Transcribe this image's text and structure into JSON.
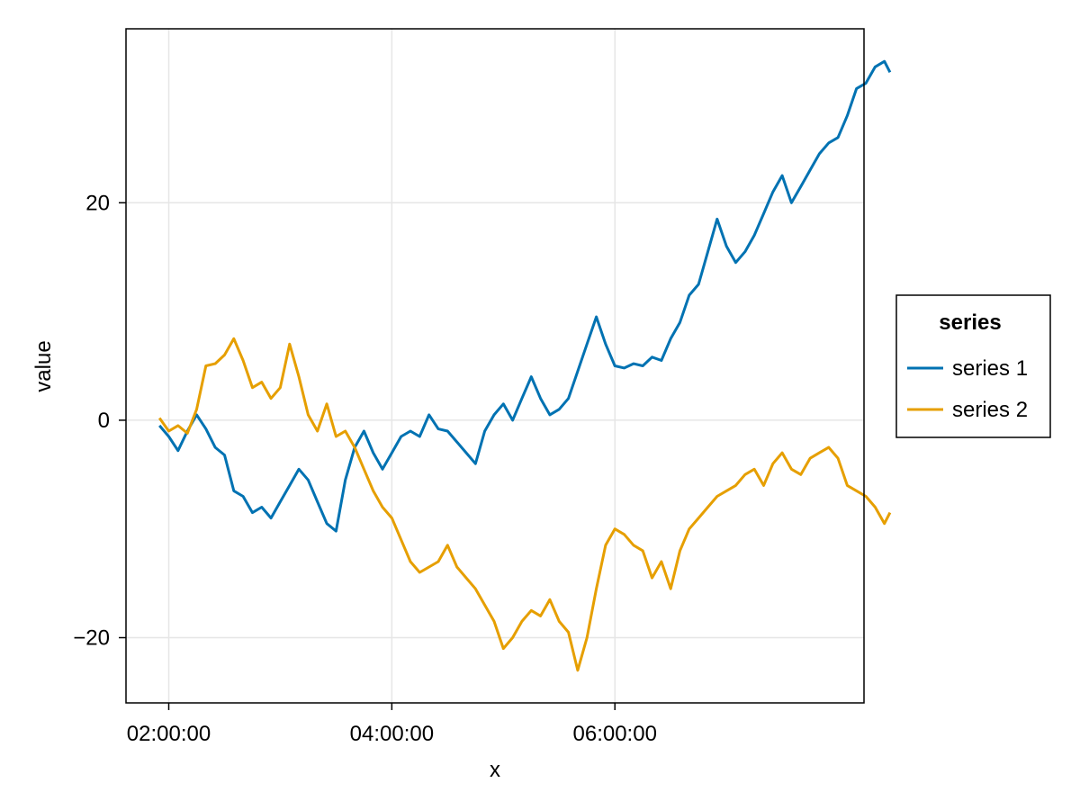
{
  "chart_data": {
    "type": "line",
    "title": "",
    "xlabel": "x",
    "ylabel": "value",
    "x_type": "time",
    "xlim": [
      "01:37:00",
      "08:14:00"
    ],
    "ylim": [
      -26,
      36
    ],
    "x_ticks": [
      "02:00:00",
      "04:00:00",
      "06:00:00"
    ],
    "y_ticks": [
      -20,
      0,
      20
    ],
    "y_tick_labels": [
      "−20",
      "0",
      "20"
    ],
    "grid": true,
    "legend": {
      "title": "series",
      "position": "right"
    },
    "series": [
      {
        "name": "series 1",
        "color": "#0072b2",
        "points": [
          [
            "01:55:00",
            -0.5
          ],
          [
            "02:00:00",
            -1.5
          ],
          [
            "02:05:00",
            -2.8
          ],
          [
            "02:10:00",
            -1.0
          ],
          [
            "02:15:00",
            0.5
          ],
          [
            "02:20:00",
            -0.8
          ],
          [
            "02:25:00",
            -2.5
          ],
          [
            "02:30:00",
            -3.2
          ],
          [
            "02:35:00",
            -6.5
          ],
          [
            "02:40:00",
            -7.0
          ],
          [
            "02:45:00",
            -8.5
          ],
          [
            "02:50:00",
            -8.0
          ],
          [
            "02:55:00",
            -9.0
          ],
          [
            "03:00:00",
            -7.5
          ],
          [
            "03:05:00",
            -6.0
          ],
          [
            "03:10:00",
            -4.5
          ],
          [
            "03:15:00",
            -5.5
          ],
          [
            "03:20:00",
            -7.5
          ],
          [
            "03:25:00",
            -9.5
          ],
          [
            "03:30:00",
            -10.2
          ],
          [
            "03:35:00",
            -5.5
          ],
          [
            "03:40:00",
            -2.5
          ],
          [
            "03:45:00",
            -1.0
          ],
          [
            "03:50:00",
            -3.0
          ],
          [
            "03:55:00",
            -4.5
          ],
          [
            "04:00:00",
            -3.0
          ],
          [
            "04:05:00",
            -1.5
          ],
          [
            "04:10:00",
            -1.0
          ],
          [
            "04:15:00",
            -1.5
          ],
          [
            "04:20:00",
            0.5
          ],
          [
            "04:25:00",
            -0.8
          ],
          [
            "04:30:00",
            -1.0
          ],
          [
            "04:35:00",
            -2.0
          ],
          [
            "04:40:00",
            -3.0
          ],
          [
            "04:45:00",
            -4.0
          ],
          [
            "04:50:00",
            -1.0
          ],
          [
            "04:55:00",
            0.5
          ],
          [
            "05:00:00",
            1.5
          ],
          [
            "05:05:00",
            0.0
          ],
          [
            "05:10:00",
            2.0
          ],
          [
            "05:15:00",
            4.0
          ],
          [
            "05:20:00",
            2.0
          ],
          [
            "05:25:00",
            0.5
          ],
          [
            "05:30:00",
            1.0
          ],
          [
            "05:35:00",
            2.0
          ],
          [
            "05:40:00",
            4.5
          ],
          [
            "05:45:00",
            7.0
          ],
          [
            "05:50:00",
            9.5
          ],
          [
            "05:55:00",
            7.0
          ],
          [
            "06:00:00",
            5.0
          ],
          [
            "06:05:00",
            4.8
          ],
          [
            "06:10:00",
            5.2
          ],
          [
            "06:15:00",
            5.0
          ],
          [
            "06:20:00",
            5.8
          ],
          [
            "06:25:00",
            5.5
          ],
          [
            "06:30:00",
            7.5
          ],
          [
            "06:35:00",
            9.0
          ],
          [
            "06:40:00",
            11.5
          ],
          [
            "06:45:00",
            12.5
          ],
          [
            "06:50:00",
            15.5
          ],
          [
            "06:55:00",
            18.5
          ],
          [
            "07:00:00",
            16.0
          ],
          [
            "07:05:00",
            14.5
          ],
          [
            "07:10:00",
            15.5
          ],
          [
            "07:15:00",
            17.0
          ],
          [
            "07:20:00",
            19.0
          ],
          [
            "07:25:00",
            21.0
          ],
          [
            "07:30:00",
            22.5
          ],
          [
            "07:35:00",
            20.0
          ],
          [
            "07:40:00",
            21.5
          ],
          [
            "07:45:00",
            23.0
          ],
          [
            "07:50:00",
            24.5
          ],
          [
            "07:55:00",
            25.5
          ],
          [
            "08:00:00",
            26.0
          ],
          [
            "08:05:00",
            28.0
          ],
          [
            "08:10:00",
            30.5
          ],
          [
            "08:15:00",
            31.0
          ],
          [
            "08:20:00",
            32.5
          ],
          [
            "08:25:00",
            33.0
          ],
          [
            "08:28:00",
            32.0
          ]
        ]
      },
      {
        "name": "series 2",
        "color": "#e69f00",
        "points": [
          [
            "01:55:00",
            0.2
          ],
          [
            "02:00:00",
            -1.0
          ],
          [
            "02:05:00",
            -0.5
          ],
          [
            "02:10:00",
            -1.2
          ],
          [
            "02:15:00",
            1.0
          ],
          [
            "02:20:00",
            5.0
          ],
          [
            "02:25:00",
            5.2
          ],
          [
            "02:30:00",
            6.0
          ],
          [
            "02:35:00",
            7.5
          ],
          [
            "02:40:00",
            5.5
          ],
          [
            "02:45:00",
            3.0
          ],
          [
            "02:50:00",
            3.5
          ],
          [
            "02:55:00",
            2.0
          ],
          [
            "03:00:00",
            3.0
          ],
          [
            "03:05:00",
            7.0
          ],
          [
            "03:10:00",
            4.0
          ],
          [
            "03:15:00",
            0.5
          ],
          [
            "03:20:00",
            -1.0
          ],
          [
            "03:25:00",
            1.5
          ],
          [
            "03:30:00",
            -1.5
          ],
          [
            "03:35:00",
            -1.0
          ],
          [
            "03:40:00",
            -2.5
          ],
          [
            "03:45:00",
            -4.5
          ],
          [
            "03:50:00",
            -6.5
          ],
          [
            "03:55:00",
            -8.0
          ],
          [
            "04:00:00",
            -9.0
          ],
          [
            "04:05:00",
            -11.0
          ],
          [
            "04:10:00",
            -13.0
          ],
          [
            "04:15:00",
            -14.0
          ],
          [
            "04:20:00",
            -13.5
          ],
          [
            "04:25:00",
            -13.0
          ],
          [
            "04:30:00",
            -11.5
          ],
          [
            "04:35:00",
            -13.5
          ],
          [
            "04:40:00",
            -14.5
          ],
          [
            "04:45:00",
            -15.5
          ],
          [
            "04:50:00",
            -17.0
          ],
          [
            "04:55:00",
            -18.5
          ],
          [
            "05:00:00",
            -21.0
          ],
          [
            "05:05:00",
            -20.0
          ],
          [
            "05:10:00",
            -18.5
          ],
          [
            "05:15:00",
            -17.5
          ],
          [
            "05:20:00",
            -18.0
          ],
          [
            "05:25:00",
            -16.5
          ],
          [
            "05:30:00",
            -18.5
          ],
          [
            "05:35:00",
            -19.5
          ],
          [
            "05:40:00",
            -23.0
          ],
          [
            "05:45:00",
            -20.0
          ],
          [
            "05:50:00",
            -15.5
          ],
          [
            "05:55:00",
            -11.5
          ],
          [
            "06:00:00",
            -10.0
          ],
          [
            "06:05:00",
            -10.5
          ],
          [
            "06:10:00",
            -11.5
          ],
          [
            "06:15:00",
            -12.0
          ],
          [
            "06:20:00",
            -14.5
          ],
          [
            "06:25:00",
            -13.0
          ],
          [
            "06:30:00",
            -15.5
          ],
          [
            "06:35:00",
            -12.0
          ],
          [
            "06:40:00",
            -10.0
          ],
          [
            "06:45:00",
            -9.0
          ],
          [
            "06:50:00",
            -8.0
          ],
          [
            "06:55:00",
            -7.0
          ],
          [
            "07:00:00",
            -6.5
          ],
          [
            "07:05:00",
            -6.0
          ],
          [
            "07:10:00",
            -5.0
          ],
          [
            "07:15:00",
            -4.5
          ],
          [
            "07:20:00",
            -6.0
          ],
          [
            "07:25:00",
            -4.0
          ],
          [
            "07:30:00",
            -3.0
          ],
          [
            "07:35:00",
            -4.5
          ],
          [
            "07:40:00",
            -5.0
          ],
          [
            "07:45:00",
            -3.5
          ],
          [
            "07:50:00",
            -3.0
          ],
          [
            "07:55:00",
            -2.5
          ],
          [
            "08:00:00",
            -3.5
          ],
          [
            "08:05:00",
            -6.0
          ],
          [
            "08:10:00",
            -6.5
          ],
          [
            "08:15:00",
            -7.0
          ],
          [
            "08:20:00",
            -8.0
          ],
          [
            "08:25:00",
            -9.5
          ],
          [
            "08:28:00",
            -8.5
          ]
        ]
      }
    ]
  }
}
